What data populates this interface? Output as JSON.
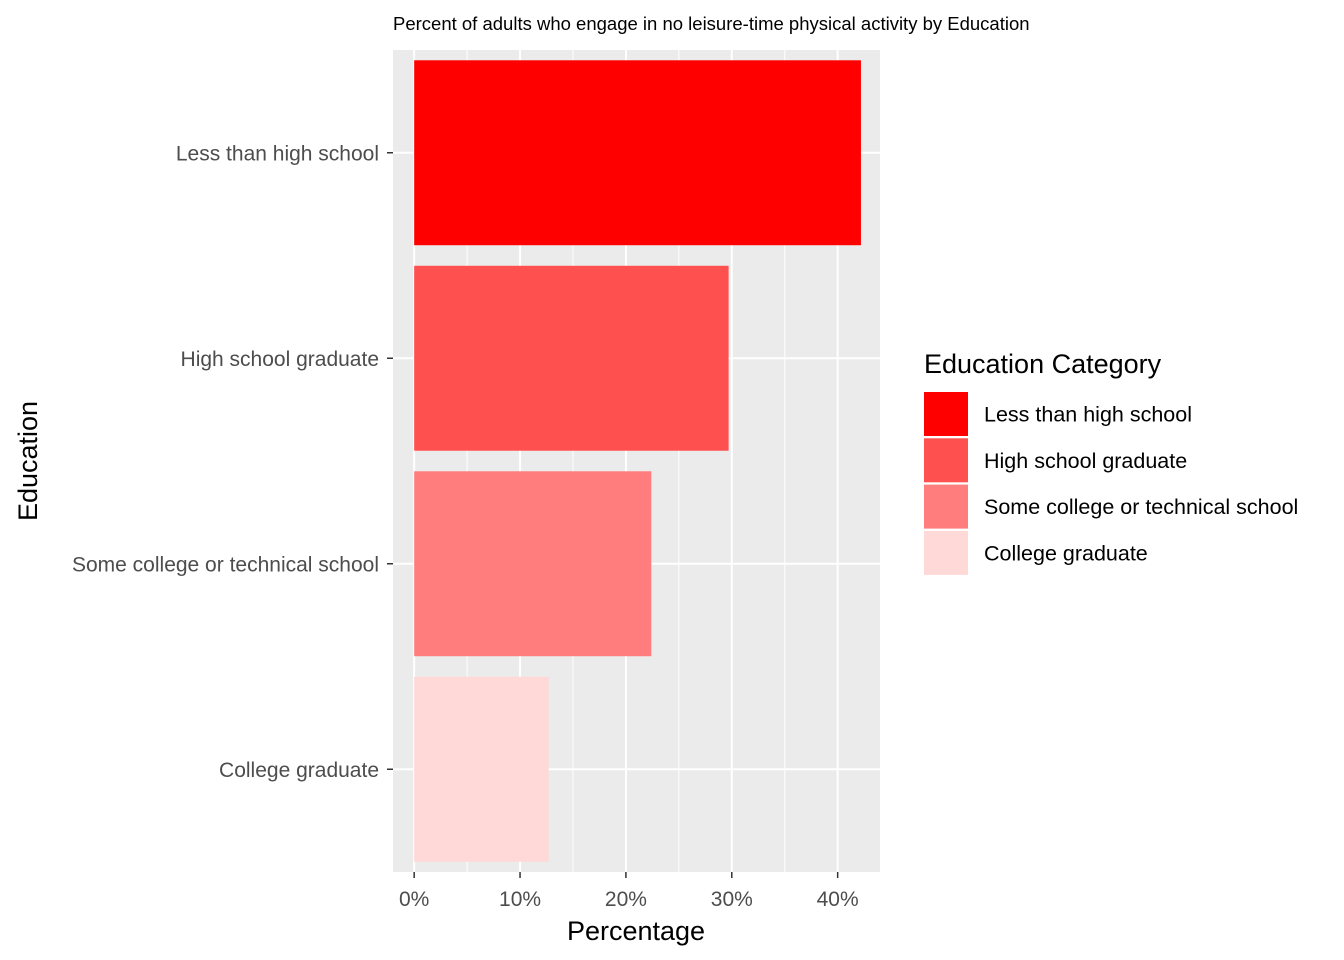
{
  "chart_data": {
    "type": "bar",
    "orientation": "horizontal",
    "title": "Percent of adults who engage in no leisure-time physical activity by Education",
    "xlabel": "Percentage",
    "ylabel": "Education",
    "xlim": [
      -0.02,
      0.44
    ],
    "x_ticks": [
      0,
      0.1,
      0.2,
      0.3,
      0.4
    ],
    "x_tick_labels": [
      "0%",
      "10%",
      "20%",
      "30%",
      "40%"
    ],
    "categories": [
      "Less than high school",
      "High school graduate",
      "Some college or technical school",
      "College graduate"
    ],
    "values": [
      0.422,
      0.297,
      0.224,
      0.127
    ],
    "colors": [
      "#ff0000",
      "#ff5050",
      "#ff7d7d",
      "#ffd8d8"
    ],
    "grid": true,
    "panel_background": "#ebebeb",
    "legend": {
      "title": "Education Category",
      "position": "right",
      "entries": [
        "Less than high school",
        "High school graduate",
        "Some college or technical school",
        "College graduate"
      ]
    }
  }
}
